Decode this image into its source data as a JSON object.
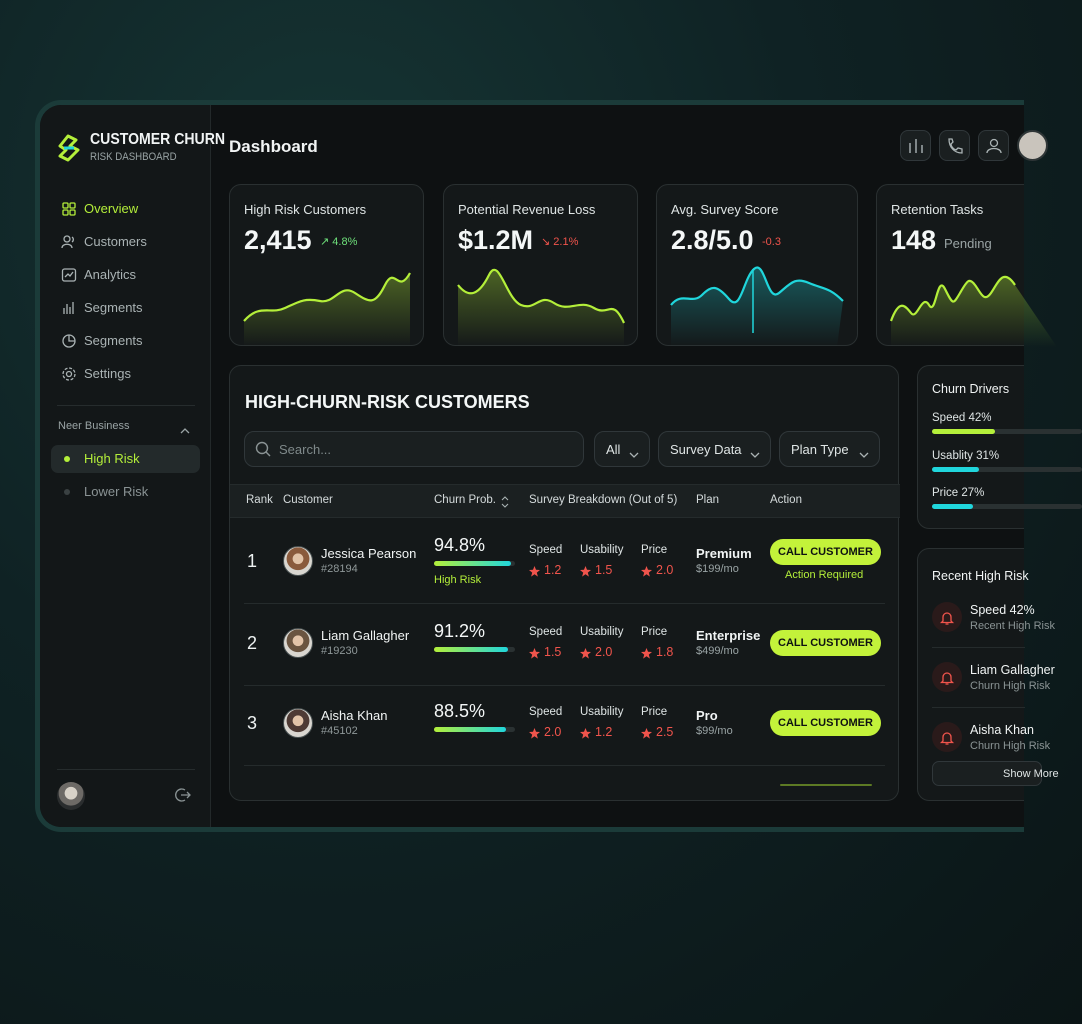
{
  "brand": {
    "title": "CUSTOMER CHURN",
    "subtitle": "RISK DASHBOARD"
  },
  "nav": [
    "Overview",
    "Customers",
    "Analytics",
    "Segments",
    "Segments",
    "Settings"
  ],
  "sidebar_section": {
    "title": "Neer Business",
    "items": [
      "High Risk",
      "Lower Risk"
    ]
  },
  "header": {
    "title": "Dashboard"
  },
  "kpis": [
    {
      "label": "High Risk Customers",
      "value": "2,415",
      "delta": "↗ 4.8%"
    },
    {
      "label": "Potential Revenue Loss",
      "value": "$1.2M",
      "delta": "↘ 2.1%"
    },
    {
      "label": "Avg. Survey Score",
      "value": "2.8/5.0",
      "delta": "-0.3"
    },
    {
      "label": "Retention Tasks",
      "value": "148",
      "delta": "Pending"
    }
  ],
  "table": {
    "title": "HIGH-CHURN-RISK CUSTOMERS",
    "search_placeholder": "Search...",
    "filters": [
      "All",
      "Survey Data",
      "Plan Type"
    ],
    "columns": [
      "Rank",
      "Customer",
      "Churn Prob.",
      "Survey Breakdown (Out of 5)",
      "Plan",
      "Action"
    ],
    "rows": [
      {
        "rank": "1",
        "name": "Jessica Pearson",
        "id": "#28194",
        "churn": {
          "value": 94.8,
          "label": "94.8%"
        },
        "status": "High Risk",
        "scores": [
          {
            "label": "Speed",
            "value": "1.2"
          },
          {
            "label": "Usability",
            "value": "1.5"
          },
          {
            "label": "Price",
            "value": "2.0"
          }
        ],
        "plan": "Premium",
        "price": "$199/mo",
        "action": "CALL CUSTOMER",
        "note": "Action Required"
      },
      {
        "rank": "2",
        "name": "Liam Gallagher",
        "id": "#19230",
        "churn": {
          "value": 91.2,
          "label": "91.2%"
        },
        "scores": [
          {
            "label": "Speed",
            "value": "1.5"
          },
          {
            "label": "Usability",
            "value": "2.0"
          },
          {
            "label": "Price",
            "value": "1.8"
          }
        ],
        "plan": "Enterprise",
        "price": "$499/mo",
        "action": "CALL CUSTOMER"
      },
      {
        "rank": "3",
        "name": "Aisha Khan",
        "id": "#45102",
        "churn": {
          "value": 88.5,
          "label": "88.5%"
        },
        "scores": [
          {
            "label": "Speed",
            "value": "2.0"
          },
          {
            "label": "Usability",
            "value": "1.2"
          },
          {
            "label": "Price",
            "value": "2.5"
          }
        ],
        "plan": "Pro",
        "price": "$99/mo",
        "action": "CALL CUSTOMER"
      }
    ]
  },
  "drivers": {
    "title": "Churn Drivers",
    "items": [
      {
        "label": "Speed 42%",
        "value": 42
      },
      {
        "label": "Usablity 31%",
        "value": 31
      },
      {
        "label": "Price 27%",
        "value": 27
      }
    ]
  },
  "recent": {
    "title": "Recent High Risk",
    "items": [
      {
        "name": "Speed 42%",
        "sub": "Recent High Risk"
      },
      {
        "name": "Liam Gallagher",
        "sub": "Churn High Risk"
      },
      {
        "name": "Aisha Khan",
        "sub": "Churn High Risk"
      }
    ],
    "button": "Show More"
  }
}
